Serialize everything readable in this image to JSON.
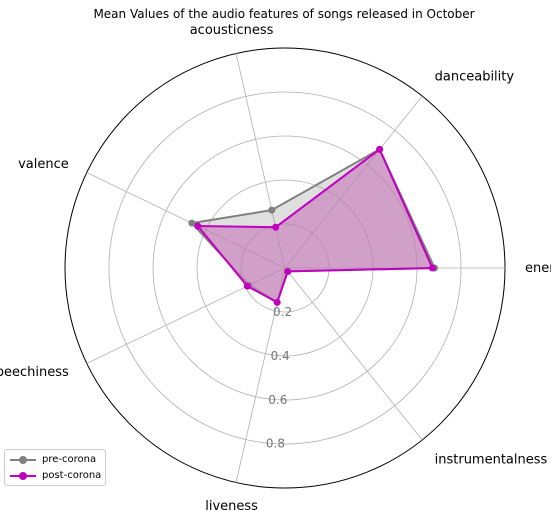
{
  "chart_data": {
    "type": "radar",
    "title": "Mean Values of the audio features of songs released in October",
    "axes": [
      "energy",
      "danceability",
      "acousticness",
      "valence",
      "speechiness",
      "liveness",
      "instrumentalness"
    ],
    "radial_ticks": [
      "0.2",
      "0.4",
      "0.6",
      "0.8"
    ],
    "rlim": [
      0,
      1
    ],
    "grid": true,
    "legend_position": "lower-left",
    "series": [
      {
        "name": "pre-corona",
        "color": "#808080",
        "values": [
          0.68,
          0.69,
          0.27,
          0.47,
          0.18,
          0.16,
          0.02
        ]
      },
      {
        "name": "post-corona",
        "color": "#bf00bf",
        "fill": "#c77ebd",
        "values": [
          0.67,
          0.69,
          0.19,
          0.44,
          0.19,
          0.16,
          0.02
        ]
      }
    ]
  },
  "legend": {
    "items": [
      "pre-corona",
      "post-corona"
    ]
  }
}
